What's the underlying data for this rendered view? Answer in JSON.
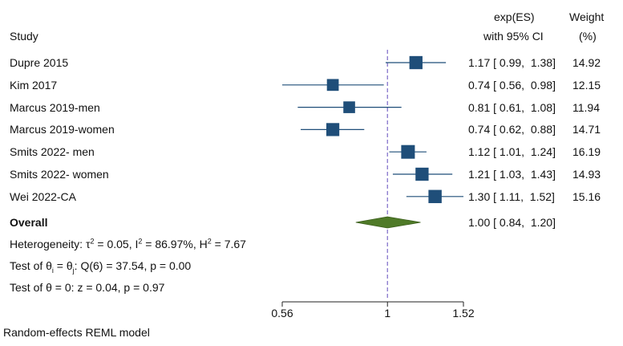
{
  "chart_data": {
    "type": "forest",
    "x_scale": "log",
    "header": {
      "study": "Study",
      "es_line1": "exp(ES)",
      "es_line2": "with 95% CI",
      "weight_line1": "Weight",
      "weight_line2": "(%)"
    },
    "studies": [
      {
        "name": "Dupre 2015",
        "es": 1.17,
        "lo": 0.99,
        "hi": 1.38,
        "ci_text": "1.17 [ 0.99,  1.38]",
        "weight": 14.92,
        "weight_text": "14.92"
      },
      {
        "name": "Kim 2017",
        "es": 0.74,
        "lo": 0.56,
        "hi": 0.98,
        "ci_text": "0.74 [ 0.56,  0.98]",
        "weight": 12.15,
        "weight_text": "12.15"
      },
      {
        "name": "Marcus 2019-men",
        "es": 0.81,
        "lo": 0.61,
        "hi": 1.08,
        "ci_text": "0.81 [ 0.61,  1.08]",
        "weight": 11.94,
        "weight_text": "11.94"
      },
      {
        "name": "Marcus 2019-women",
        "es": 0.74,
        "lo": 0.62,
        "hi": 0.88,
        "ci_text": "0.74 [ 0.62,  0.88]",
        "weight": 14.71,
        "weight_text": "14.71"
      },
      {
        "name": "Smits 2022- men",
        "es": 1.12,
        "lo": 1.01,
        "hi": 1.24,
        "ci_text": "1.12 [ 1.01,  1.24]",
        "weight": 16.19,
        "weight_text": "16.19"
      },
      {
        "name": "Smits 2022- women",
        "es": 1.21,
        "lo": 1.03,
        "hi": 1.43,
        "ci_text": "1.21 [ 1.03,  1.43]",
        "weight": 14.93,
        "weight_text": "14.93"
      },
      {
        "name": "Wei 2022-CA",
        "es": 1.3,
        "lo": 1.11,
        "hi": 1.52,
        "ci_text": "1.30 [ 1.11,  1.52]",
        "weight": 15.16,
        "weight_text": "15.16"
      }
    ],
    "overall": {
      "name": "Overall",
      "es": 1.0,
      "lo": 0.84,
      "hi": 1.2,
      "ci_text": "1.00 [ 0.84,  1.20]"
    },
    "heterogeneity": {
      "prefix": "Heterogeneity: τ",
      "tau_sup": "2",
      "tau_val": " = 0.05, I",
      "i_sup": "2",
      "i_val": " = 86.97%, H",
      "h_sup": "2",
      "h_val": " = 7.67"
    },
    "test_equal": {
      "p1": "Test of θ",
      "s1": "i",
      "p2": " = θ",
      "s2": "j",
      "p3": ": Q(6) = 37.54, p = 0.00"
    },
    "test_zero": "Test of θ = 0: z = 0.04, p = 0.97",
    "x_axis": {
      "ticks": [
        0.56,
        1,
        1.52
      ],
      "tick_labels": [
        "0.56",
        "1",
        "1.52"
      ],
      "range": [
        0.56,
        1.52
      ]
    },
    "reference_line": 1,
    "footer": "Random-effects REML model",
    "colors": {
      "marker": "#1f4e79",
      "ci_line": "#1f4e79",
      "diamond": "#4f7a28",
      "diamond_edge": "#3b5e1c",
      "ref_line": "#7b68c8",
      "axis": "#222222"
    }
  }
}
